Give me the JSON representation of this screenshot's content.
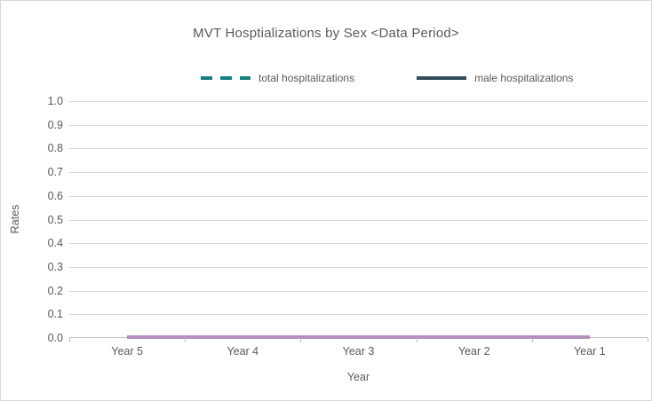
{
  "window": {
    "background": "#ffffff",
    "border_color": "#d9d9d9"
  },
  "chart_data": {
    "type": "line",
    "title": "MVT Hosptializations by Sex <Data Period>",
    "xlabel": "Year",
    "ylabel": "Rates",
    "categories": [
      "Year 5",
      "Year 4",
      "Year 3",
      "Year 2",
      "Year 1"
    ],
    "series": [
      {
        "name": "total hospitalizations",
        "values": [
          0,
          0,
          0,
          0,
          0
        ],
        "color": "#157f7f",
        "style": "dashed",
        "in_legend": true
      },
      {
        "name": "male hospitalizations",
        "values": [
          0,
          0,
          0,
          0,
          0
        ],
        "color": "#2f4b5c",
        "style": "solid",
        "in_legend": true
      },
      {
        "name": "",
        "values": [
          0,
          0,
          0,
          0,
          0
        ],
        "color": "#b48ebd",
        "style": "solid",
        "in_legend": false
      }
    ],
    "ylim": [
      0,
      1
    ],
    "y_ticks": [
      "1.0",
      "0.9",
      "0.8",
      "0.7",
      "0.6",
      "0.5",
      "0.4",
      "0.3",
      "0.2",
      "0.1",
      "0.0"
    ],
    "grid": true,
    "legend_position": "top",
    "gridline_color": "#d9d9d9",
    "axis_line_color": "#bfbfbf",
    "text_color": "#595959"
  },
  "legend": {
    "items": [
      {
        "label": "total hospitalizations",
        "color": "#157f7f",
        "style": "dashed"
      },
      {
        "label": "male hospitalizations",
        "color": "#2f4b5c",
        "style": "solid"
      }
    ]
  }
}
